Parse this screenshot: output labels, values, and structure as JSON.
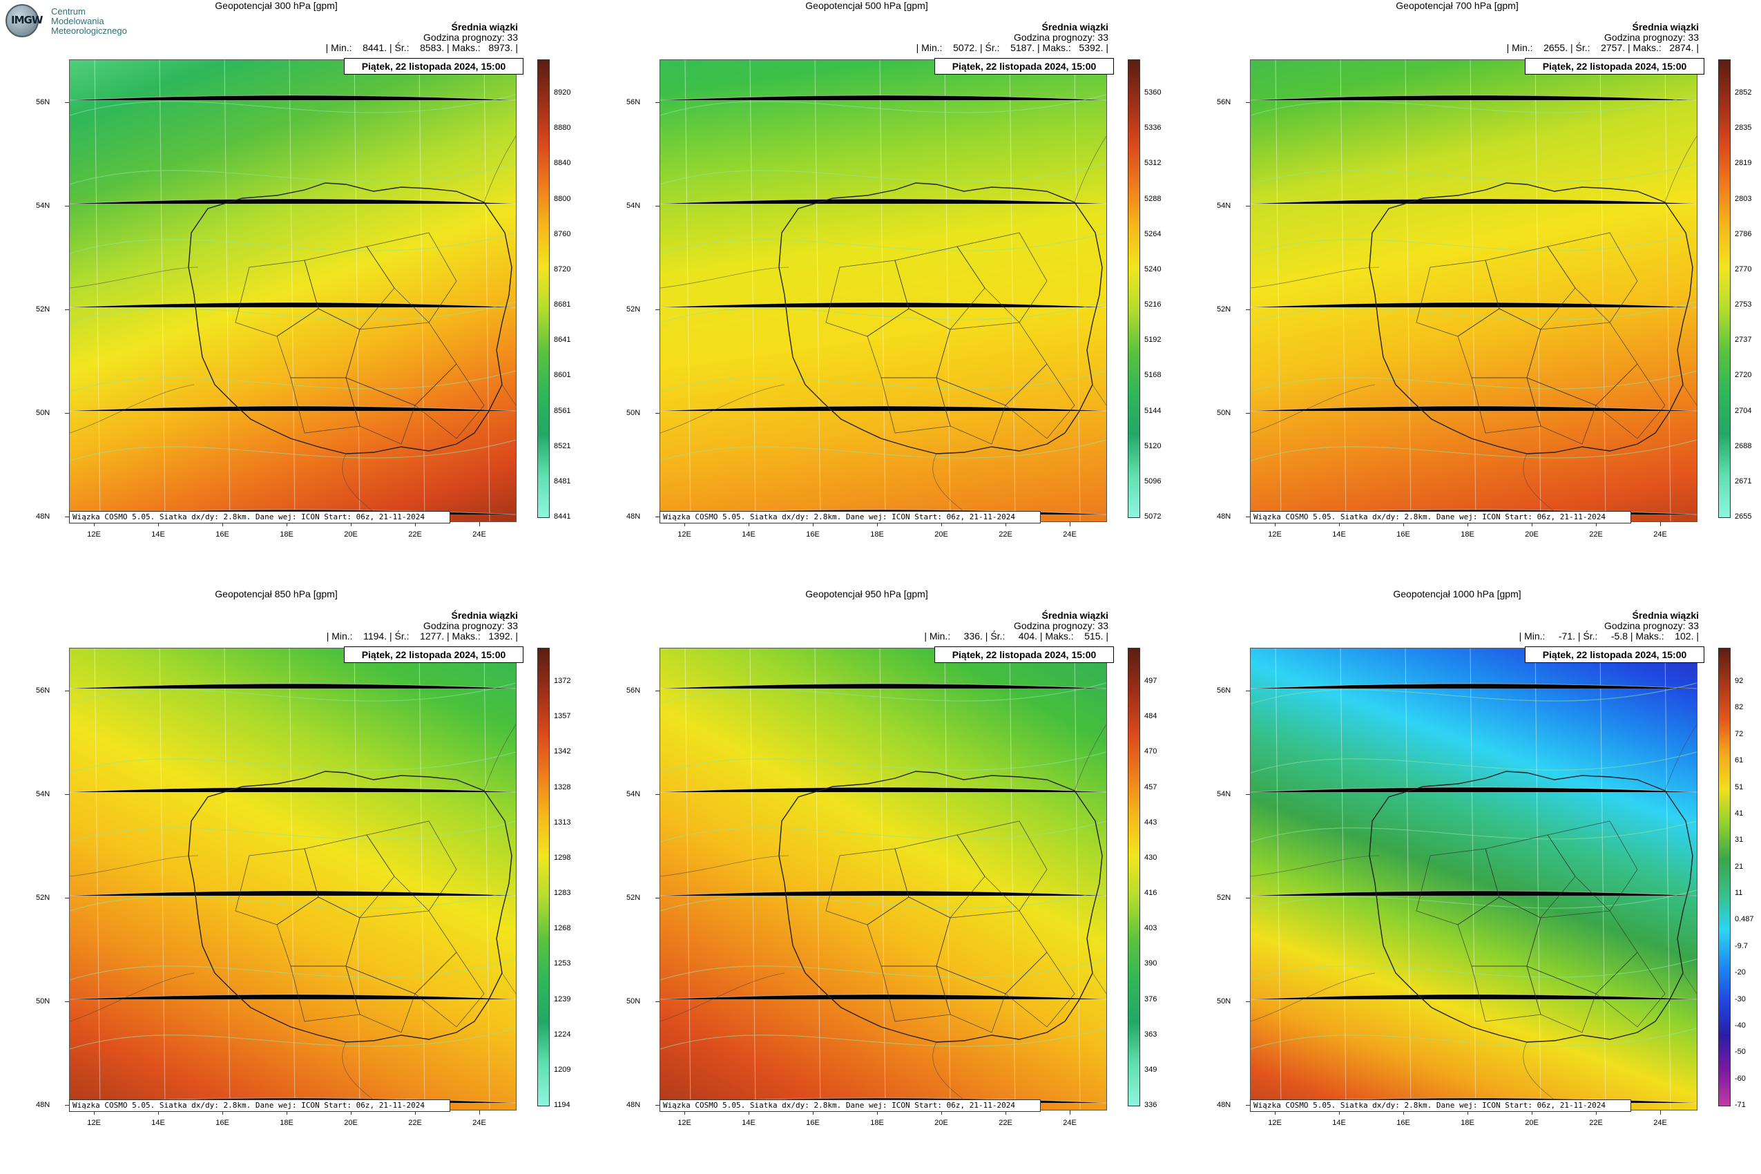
{
  "logo": {
    "line1": "Centrum",
    "line2": "Modelowania",
    "line3": "Meteorologicznego",
    "badge": "IMGW"
  },
  "common": {
    "subtitle": "Średnia wiązki",
    "date": "Piątek, 22 listopada 2024, 15:00",
    "source": "Wiązka COSMO 5.05. Siatka dx/dy: 2.8km. Dane wej: ICON Start: 06z, 21-11-2024",
    "lat_labels": [
      "56N",
      "54N",
      "52N",
      "50N",
      "48N"
    ],
    "lon_labels": [
      "12E",
      "14E",
      "16E",
      "18E",
      "20E",
      "22E",
      "24E"
    ]
  },
  "panels": [
    {
      "title": "Geopotencjał 300 hPa [gpm]",
      "forecast": "Godzina prognozy: 33",
      "stats": "| Min.:    8441. | Śr.:    8583. | Maks.:   8973. |",
      "scale": [
        "8920",
        "8880",
        "8840",
        "8800",
        "8760",
        "8720",
        "8681",
        "8641",
        "8601",
        "8561",
        "8521",
        "8481",
        "8441"
      ],
      "palette": "green-red",
      "gradient": [
        "#5fd98a",
        "#2fb75a",
        "#5cc23e",
        "#b4dd2e",
        "#f2e51f",
        "#f6b71b",
        "#ef7a1c",
        "#d9471c",
        "#8a2c14"
      ],
      "angle": "160deg"
    },
    {
      "title": "Geopotencjał 500 hPa [gpm]",
      "forecast": "Godzina prognozy: 33",
      "stats": "| Min.:    5072. | Śr.:    5187. | Maks.:   5392. |",
      "scale": [
        "5360",
        "5336",
        "5312",
        "5288",
        "5264",
        "5240",
        "5216",
        "5192",
        "5168",
        "5144",
        "5120",
        "5096",
        "5072"
      ],
      "palette": "green-red",
      "gradient": [
        "#2fb865",
        "#3cc048",
        "#9ad82e",
        "#e9e51d",
        "#f6dc1a",
        "#f6b81b",
        "#f08a1c",
        "#e45a1c"
      ],
      "angle": "172deg"
    },
    {
      "title": "Geopotencjał 700 hPa [gpm]",
      "forecast": "Godzina prognozy: 33",
      "stats": "| Min.:    2655. | Śr.:    2757. | Maks.:   2874. |",
      "scale": [
        "2852",
        "2835",
        "2819",
        "2803",
        "2786",
        "2770",
        "2753",
        "2737",
        "2720",
        "2704",
        "2688",
        "2671",
        "2655"
      ],
      "palette": "green-red",
      "gradient": [
        "#36b85a",
        "#52c33a",
        "#c8df25",
        "#f4e31c",
        "#f6c01b",
        "#f08a1c",
        "#e3541c",
        "#9b3116"
      ],
      "angle": "168deg"
    },
    {
      "title": "Geopotencjał 850 hPa [gpm]",
      "forecast": "Godzina prognozy: 33",
      "stats": "| Min.:    1194. | Śr.:    1277. | Maks.:   1392. |",
      "scale": [
        "1372",
        "1357",
        "1342",
        "1328",
        "1313",
        "1298",
        "1283",
        "1268",
        "1253",
        "1239",
        "1224",
        "1209",
        "1194"
      ],
      "palette": "green-red",
      "gradient": [
        "#30b459",
        "#4bc13c",
        "#a8da2b",
        "#f2e41d",
        "#f6c21b",
        "#f0901c",
        "#e0521c",
        "#a3351a"
      ],
      "angle": "205deg"
    },
    {
      "title": "Geopotencjał 950 hPa [gpm]",
      "forecast": "Godzina prognozy: 33",
      "stats": "| Min.:     336. | Śr.:     404. | Maks.:    515. |",
      "scale": [
        "497",
        "484",
        "470",
        "457",
        "443",
        "430",
        "416",
        "403",
        "390",
        "376",
        "363",
        "349",
        "336"
      ],
      "palette": "green-red",
      "gradient": [
        "#2fae5a",
        "#45be3d",
        "#9fd82c",
        "#efe31d",
        "#f6bd1b",
        "#ee861c",
        "#de4e1c",
        "#a8361a"
      ],
      "angle": "208deg"
    },
    {
      "title": "Geopotencjał 1000 hPa [gpm]",
      "forecast": "Godzina prognozy: 33",
      "stats": "| Min.:     -71. | Śr.:     -5.8 | Maks.:    102. |",
      "scale": [
        "92",
        "82",
        "72",
        "61",
        "51",
        "41",
        "31",
        "21",
        "11",
        "0.487",
        "-9.7",
        "-20",
        "-30",
        "-40",
        "-50",
        "-60",
        "-71"
      ],
      "palette": "diverging",
      "gradient": [
        "#2a1ea8",
        "#1f48e0",
        "#1e8df0",
        "#2fd3f5",
        "#36c08a",
        "#3aa64a",
        "#8ed22e",
        "#f1df1d",
        "#f3a81b",
        "#e2561c",
        "#a7381a"
      ],
      "angle": "200deg"
    }
  ]
}
